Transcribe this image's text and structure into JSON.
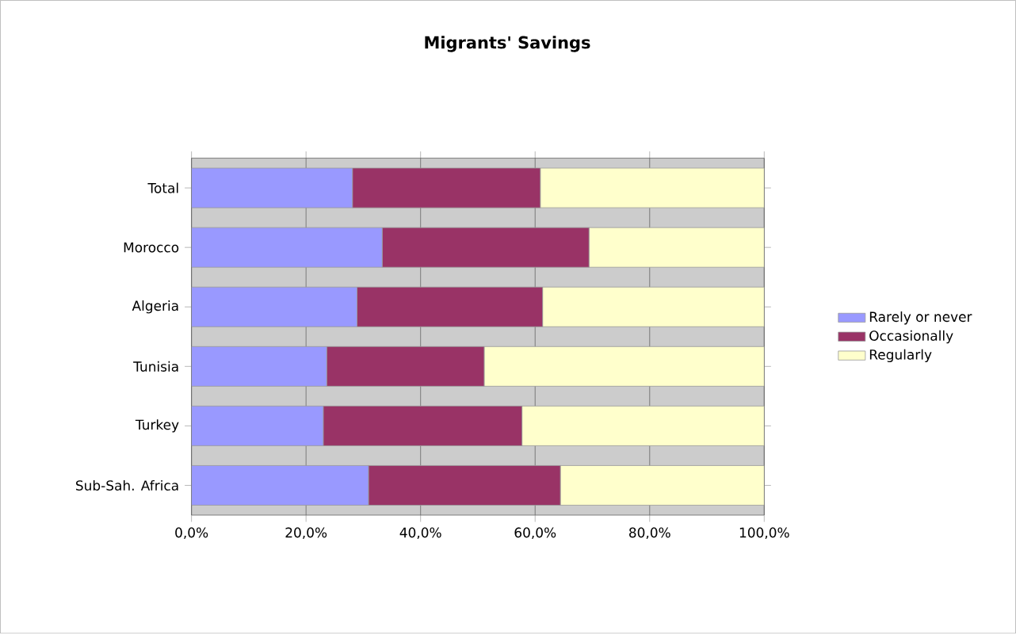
{
  "chart_data": {
    "type": "bar",
    "title": "Migrants' Savings",
    "orientation": "horizontal",
    "stacked": true,
    "categories": [
      "Total",
      "Morocco",
      "Algeria",
      "Tunisia",
      "Turkey",
      "Sub-Sah. Africa"
    ],
    "series": [
      {
        "name": "Rarely or never",
        "color": "#9999ff",
        "values": [
          28.1,
          33.3,
          28.9,
          23.6,
          23.0,
          30.9
        ]
      },
      {
        "name": "Occasionally",
        "color": "#993366",
        "values": [
          32.8,
          36.1,
          32.4,
          27.5,
          34.7,
          33.5
        ]
      },
      {
        "name": "Regularly",
        "color": "#ffffcc",
        "values": [
          39.1,
          30.6,
          38.7,
          48.9,
          42.3,
          35.6
        ]
      }
    ],
    "xlim": [
      0,
      100
    ],
    "xticks": [
      {
        "value": 0,
        "label": "0,0%"
      },
      {
        "value": 20,
        "label": "20,0%"
      },
      {
        "value": 40,
        "label": "40,0%"
      },
      {
        "value": 60,
        "label": "60,0%"
      },
      {
        "value": 80,
        "label": "80,0%"
      },
      {
        "value": 100,
        "label": "100,0%"
      }
    ],
    "grid": "x",
    "legend": "right"
  }
}
